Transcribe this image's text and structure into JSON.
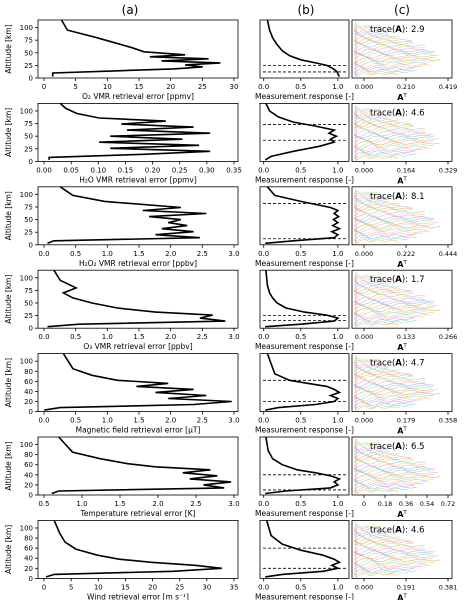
{
  "column_headers": [
    "(a)",
    "(b)",
    "(c)"
  ],
  "y_axis_title": "Altitude [km]",
  "avk_x_label": "A",
  "avk_x_sup": "T",
  "trace_prefix": "trace(",
  "trace_symbol": "A",
  "trace_suffix": "):",
  "measurement_response_label": "Measurement response [-]",
  "response_ticks": [
    "0.0",
    "0.5",
    "1.0"
  ],
  "panels": [
    {
      "error_label": "O₂ VMR retrieval error [ppmv]",
      "error_ticks": [
        "0",
        "5",
        "10",
        "15",
        "20",
        "25",
        "30"
      ],
      "altitude_ticks": [
        "0",
        "25",
        "50",
        "75",
        "100"
      ],
      "avk_ticks": [
        "0.000",
        "0.210",
        "0.419"
      ],
      "trace": "2.9"
    },
    {
      "error_label": "H₂O VMR retrieval error [ppmv]",
      "error_ticks": [
        "0.00",
        "0.05",
        "0.10",
        "0.15",
        "0.20",
        "0.25",
        "0.30",
        "0.35"
      ],
      "altitude_ticks": [
        "0",
        "25",
        "50",
        "75",
        "100"
      ],
      "avk_ticks": [
        "0.000",
        "0.164",
        "0.329"
      ],
      "trace": "4.6"
    },
    {
      "error_label": "H₂O₂ VMR retrieval error [ppbv]",
      "error_ticks": [
        "0.0",
        "0.5",
        "1.0",
        "1.5",
        "2.0",
        "2.5",
        "3.0"
      ],
      "altitude_ticks": [
        "0",
        "25",
        "50",
        "75",
        "100"
      ],
      "avk_ticks": [
        "0.000",
        "0.222",
        "0.444"
      ],
      "trace": "8.1"
    },
    {
      "error_label": "O₃ VMR retrieval error [ppbv]",
      "error_ticks": [
        "0.0",
        "0.5",
        "1.0",
        "1.5",
        "2.0",
        "2.5",
        "3.0"
      ],
      "altitude_ticks": [
        "0",
        "25",
        "50",
        "75",
        "100"
      ],
      "avk_ticks": [
        "0.000",
        "0.133",
        "0.266"
      ],
      "trace": "1.7"
    },
    {
      "error_label": "Magnetic field retrieval error [μT]",
      "error_ticks": [
        "0.0",
        "0.5",
        "1.0",
        "1.5",
        "2.0",
        "2.5",
        "3.0"
      ],
      "altitude_ticks": [
        "0",
        "20",
        "40",
        "60",
        "80",
        "100"
      ],
      "avk_ticks": [
        "0.000",
        "0.179",
        "0.358"
      ],
      "trace": "4.7"
    },
    {
      "error_label": "Temperature retrieval error [K]",
      "error_ticks": [
        "0.5",
        "1.0",
        "1.5",
        "2.0",
        "2.5",
        "3.0"
      ],
      "altitude_ticks": [
        "0",
        "20",
        "40",
        "60",
        "80",
        "100"
      ],
      "avk_ticks": [
        "0",
        "0.18",
        "0.36",
        "0.54",
        "0.72"
      ],
      "trace": "6.5"
    },
    {
      "error_label": "Wind retrieval error [m s⁻¹]",
      "error_ticks": [
        "0",
        "5",
        "10",
        "15",
        "20",
        "25",
        "30",
        "35"
      ],
      "altitude_ticks": [
        "0",
        "20",
        "40",
        "60",
        "80",
        "100"
      ],
      "avk_ticks": [
        "0.000",
        "0.191",
        "0.381"
      ],
      "trace": "4.6"
    }
  ],
  "chart_data": {
    "type": "line",
    "panels": [
      {
        "row": 1,
        "error_profile": {
          "x": [
            1.5,
            1.5,
            12,
            22,
            27,
            24,
            30,
            20,
            28,
            18,
            24,
            17,
            15,
            12,
            9,
            4,
            3
          ],
          "y": [
            3,
            10,
            14,
            18,
            22,
            26,
            30,
            34,
            38,
            42,
            46,
            52,
            60,
            70,
            80,
            95,
            115
          ],
          "xlim": [
            -1,
            33
          ],
          "ylim": [
            0,
            115
          ]
        },
        "response": {
          "x": [
            1.02,
            1.0,
            0.99,
            0.96,
            0.92,
            0.85,
            0.7,
            0.5,
            0.35,
            0.25,
            0.18,
            0.12,
            0.08,
            0.05
          ],
          "y": [
            3,
            8,
            12,
            16,
            20,
            25,
            30,
            36,
            44,
            54,
            66,
            80,
            95,
            115
          ],
          "xlim": [
            -0.05,
            1.15
          ],
          "ylim": [
            0,
            115
          ],
          "dashed_levels": [
            12,
            25
          ]
        },
        "trace": 2.9
      },
      {
        "row": 2,
        "error_profile": {
          "x": [
            0.01,
            0.01,
            0.18,
            0.3,
            0.12,
            0.28,
            0.1,
            0.25,
            0.12,
            0.3,
            0.15,
            0.27,
            0.14,
            0.22,
            0.1,
            0.06,
            0.04,
            0.03
          ],
          "y": [
            3,
            8,
            14,
            20,
            26,
            32,
            38,
            44,
            50,
            56,
            62,
            68,
            74,
            80,
            86,
            95,
            105,
            115
          ],
          "xlim": [
            -0.01,
            0.35
          ],
          "ylim": [
            0,
            115
          ]
        },
        "response": {
          "x": [
            0.02,
            0.1,
            0.4,
            0.75,
            0.95,
            0.9,
            0.98,
            0.88,
            0.95,
            0.7,
            0.4,
            0.2,
            0.08,
            0.03
          ],
          "y": [
            3,
            10,
            20,
            30,
            38,
            44,
            50,
            56,
            62,
            70,
            78,
            88,
            100,
            115
          ],
          "xlim": [
            -0.05,
            1.15
          ],
          "ylim": [
            0,
            115
          ],
          "dashed_levels": [
            42,
            73
          ]
        },
        "trace": 4.6
      },
      {
        "row": 3,
        "error_profile": {
          "x": [
            0.1,
            0.2,
            2.5,
            1.8,
            2.4,
            1.9,
            2.3,
            2.0,
            2.2,
            1.7,
            2.6,
            1.6,
            2.2,
            1.0,
            0.5,
            0.3
          ],
          "y": [
            3,
            8,
            14,
            20,
            26,
            32,
            38,
            44,
            50,
            56,
            62,
            68,
            74,
            86,
            98,
            115
          ],
          "xlim": [
            -0.05,
            3.1
          ],
          "ylim": [
            0,
            115
          ]
        },
        "response": {
          "x": [
            0.02,
            0.4,
            0.95,
            1.0,
            0.92,
            1.02,
            0.93,
            1.0,
            0.94,
            1.01,
            0.95,
            1.0,
            0.9,
            0.5,
            0.15,
            0.05
          ],
          "y": [
            3,
            8,
            14,
            20,
            26,
            32,
            38,
            44,
            50,
            56,
            62,
            68,
            74,
            86,
            98,
            115
          ],
          "xlim": [
            -0.05,
            1.15
          ],
          "ylim": [
            0,
            115
          ],
          "dashed_levels": [
            12,
            82
          ]
        },
        "trace": 8.1
      },
      {
        "row": 4,
        "error_profile": {
          "x": [
            0.1,
            0.6,
            2.9,
            2.5,
            2.7,
            1.8,
            1.2,
            0.8,
            0.5,
            0.35,
            0.55,
            0.3,
            0.2
          ],
          "y": [
            3,
            8,
            14,
            20,
            26,
            32,
            40,
            50,
            60,
            70,
            80,
            95,
            115
          ],
          "xlim": [
            -0.05,
            3.1
          ],
          "ylim": [
            0,
            115
          ]
        },
        "response": {
          "x": [
            0.02,
            0.5,
            0.95,
            1.0,
            0.85,
            0.55,
            0.3,
            0.18,
            0.12,
            0.08,
            0.05,
            0.03
          ],
          "y": [
            3,
            8,
            14,
            20,
            26,
            32,
            40,
            50,
            60,
            70,
            85,
            115
          ],
          "xlim": [
            -0.05,
            1.15
          ],
          "ylim": [
            0,
            115
          ],
          "dashed_levels": [
            15,
            25
          ]
        },
        "trace": 1.7
      },
      {
        "row": 5,
        "error_profile": {
          "x": [
            0.05,
            0.3,
            2.4,
            3.0,
            2.0,
            2.6,
            1.8,
            2.4,
            1.5,
            2.0,
            1.2,
            0.8,
            0.5,
            0.35
          ],
          "y": [
            3,
            8,
            14,
            20,
            26,
            32,
            38,
            44,
            50,
            56,
            62,
            72,
            85,
            115
          ],
          "xlim": [
            -0.05,
            3.1
          ],
          "ylim": [
            0,
            115
          ]
        },
        "response": {
          "x": [
            0.02,
            0.2,
            0.7,
            0.95,
            1.0,
            0.9,
            1.02,
            0.95,
            0.85,
            0.6,
            0.35,
            0.15,
            0.05
          ],
          "y": [
            3,
            8,
            14,
            20,
            26,
            32,
            38,
            44,
            50,
            56,
            62,
            75,
            115
          ],
          "xlim": [
            -0.05,
            1.15
          ],
          "ylim": [
            0,
            115
          ],
          "dashed_levels": [
            20,
            62
          ]
        },
        "trace": 4.7
      },
      {
        "row": 6,
        "error_profile": {
          "x": [
            0.5,
            0.6,
            3.0,
            2.7,
            3.1,
            2.5,
            2.9,
            2.4,
            2.8,
            2.0,
            1.6,
            1.2,
            0.8,
            0.6
          ],
          "y": [
            3,
            8,
            14,
            20,
            26,
            32,
            38,
            44,
            50,
            56,
            62,
            72,
            85,
            115
          ],
          "xlim": [
            0.3,
            3.2
          ],
          "ylim": [
            0,
            115
          ]
        },
        "response": {
          "x": [
            0.02,
            0.3,
            0.9,
            1.0,
            0.95,
            1.02,
            0.9,
            0.7,
            0.45,
            0.25,
            0.12,
            0.06,
            0.03
          ],
          "y": [
            3,
            8,
            14,
            20,
            26,
            32,
            38,
            44,
            50,
            60,
            72,
            88,
            115
          ],
          "xlim": [
            -0.05,
            1.15
          ],
          "ylim": [
            0,
            115
          ],
          "dashed_levels": [
            10,
            40
          ]
        },
        "trace": 6.5
      },
      {
        "row": 7,
        "error_profile": {
          "x": [
            0.5,
            2,
            24,
            33,
            28,
            20,
            14,
            10,
            6,
            4,
            3,
            2
          ],
          "y": [
            3,
            8,
            14,
            20,
            26,
            32,
            38,
            46,
            58,
            72,
            90,
            115
          ],
          "xlim": [
            -1,
            36
          ],
          "ylim": [
            0,
            115
          ]
        },
        "response": {
          "x": [
            0.02,
            0.25,
            0.8,
            1.0,
            0.92,
            1.02,
            0.95,
            0.8,
            0.5,
            0.25,
            0.1,
            0.04
          ],
          "y": [
            3,
            8,
            14,
            20,
            26,
            32,
            38,
            46,
            56,
            68,
            85,
            115
          ],
          "xlim": [
            -0.05,
            1.15
          ],
          "ylim": [
            0,
            115
          ],
          "dashed_levels": [
            20,
            60
          ]
        },
        "trace": 4.6
      }
    ]
  }
}
